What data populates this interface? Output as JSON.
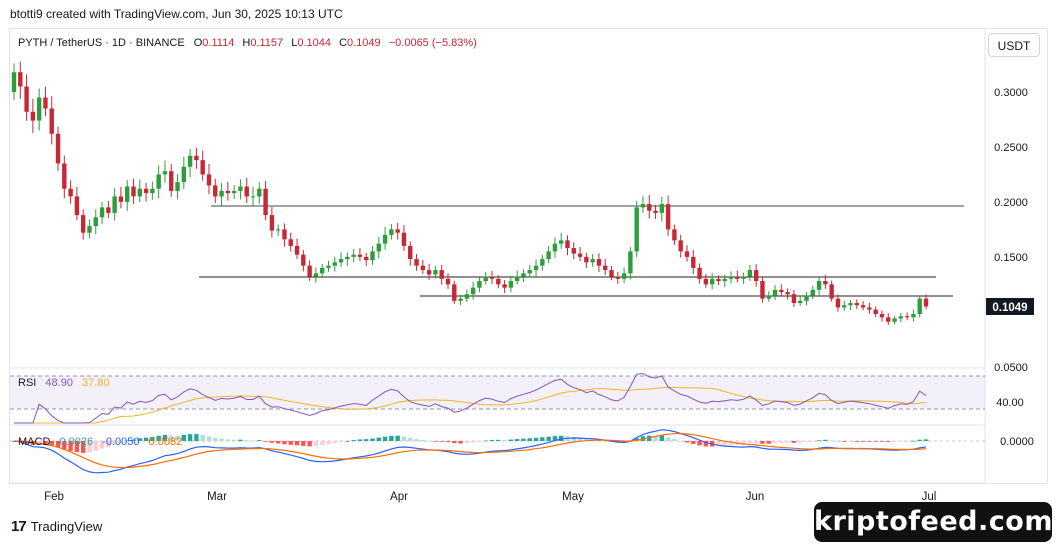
{
  "header": {
    "created_by": "btotti9 created with TradingView.com, Jun 30, 2025 10:13 UTC"
  },
  "legend": {
    "symbol": "PYTH / TetherUS · 1D · BINANCE",
    "open_label": "O",
    "open": "0.1114",
    "high_label": "H",
    "high": "0.1157",
    "low_label": "L",
    "low": "0.1044",
    "close_label": "C",
    "close": "0.1049",
    "change": "−0.0065 (−5.83%)"
  },
  "currency_button": "USDT",
  "last_price_label": "0.1049",
  "footer": {
    "logo_text": "TradingView",
    "logo_mark": "17"
  },
  "watermark": "kriptofeed.com",
  "colors": {
    "up": "#26a69a",
    "down": "#d32f2f",
    "bull_candle": "#2e9d3c",
    "bear_candle": "#c62835",
    "rsi": "#7e57c2",
    "rsi_ma": "#f0b429",
    "macd": "#2962ff",
    "signal": "#ff6d00"
  },
  "chart_data": [
    {
      "type": "candlestick",
      "title": "",
      "x_ticks": [
        "Feb",
        "Mar",
        "Apr",
        "May",
        "Jun",
        "Jul"
      ],
      "y_ticks": [
        "0.3000",
        "0.2500",
        "0.2000",
        "0.1500",
        "0.1000",
        "0.0500"
      ],
      "ylim": [
        0.05,
        0.33
      ],
      "close": [
        0.318,
        0.305,
        0.282,
        0.274,
        0.295,
        0.285,
        0.262,
        0.235,
        0.212,
        0.205,
        0.188,
        0.172,
        0.178,
        0.186,
        0.195,
        0.19,
        0.205,
        0.2,
        0.214,
        0.205,
        0.212,
        0.208,
        0.212,
        0.225,
        0.228,
        0.21,
        0.218,
        0.232,
        0.242,
        0.238,
        0.225,
        0.215,
        0.205,
        0.21,
        0.208,
        0.21,
        0.214,
        0.205,
        0.205,
        0.212,
        0.188,
        0.174,
        0.175,
        0.166,
        0.16,
        0.152,
        0.142,
        0.132,
        0.135,
        0.14,
        0.142,
        0.145,
        0.148,
        0.15,
        0.152,
        0.15,
        0.147,
        0.155,
        0.162,
        0.17,
        0.175,
        0.172,
        0.16,
        0.148,
        0.142,
        0.138,
        0.134,
        0.138,
        0.13,
        0.125,
        0.11,
        0.112,
        0.116,
        0.122,
        0.128,
        0.132,
        0.13,
        0.125,
        0.122,
        0.128,
        0.132,
        0.135,
        0.138,
        0.142,
        0.148,
        0.155,
        0.162,
        0.165,
        0.158,
        0.153,
        0.15,
        0.145,
        0.148,
        0.142,
        0.138,
        0.132,
        0.13,
        0.135,
        0.155,
        0.195,
        0.198,
        0.192,
        0.19,
        0.198,
        0.175,
        0.165,
        0.155,
        0.15,
        0.14,
        0.13,
        0.125,
        0.13,
        0.128,
        0.13,
        0.132,
        0.13,
        0.132,
        0.138,
        0.128,
        0.112,
        0.115,
        0.12,
        0.118,
        0.116,
        0.108,
        0.11,
        0.115,
        0.12,
        0.128,
        0.125,
        0.112,
        0.104,
        0.106,
        0.108,
        0.106,
        0.104,
        0.102,
        0.098,
        0.095,
        0.091,
        0.094,
        0.096,
        0.095,
        0.098,
        0.112,
        0.1049
      ]
    },
    {
      "type": "line",
      "title": "RSI",
      "values_shown": [
        "48.90",
        "37.80"
      ],
      "y_ticks": [
        "40.00"
      ],
      "series": [
        {
          "name": "RSI",
          "values": "derived from close"
        },
        {
          "name": "RSI-based MA",
          "values": "derived from RSI"
        }
      ]
    },
    {
      "type": "bar",
      "title": "MACD",
      "values_shown": [
        "0.0026",
        "-0.0050",
        "0.0082"
      ],
      "y_ticks": [
        "0.0000"
      ]
    }
  ]
}
